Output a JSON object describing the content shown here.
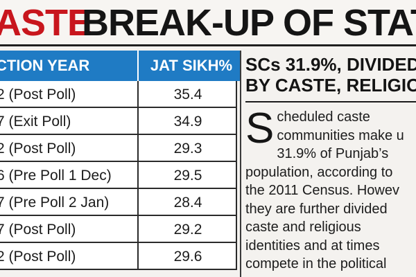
{
  "headline": {
    "red": "ASTE",
    "black": "BREAK-UP OF STATE"
  },
  "table": {
    "headers": {
      "year": "CTION YEAR",
      "jat": "JAT SIKH%"
    },
    "rows": [
      {
        "year": "2 (Post Poll)",
        "jat": "35.4"
      },
      {
        "year": "7 (Exit Poll)",
        "jat": "34.9"
      },
      {
        "year": "2 (Post Poll)",
        "jat": "29.3"
      },
      {
        "year": "6 (Pre Poll 1 Dec)",
        "jat": "29.5"
      },
      {
        "year": "7 (Pre Poll 2 Jan)",
        "jat": "28.4"
      },
      {
        "year": "7 (Post Poll)",
        "jat": "29.2"
      },
      {
        "year": "2 (Post Poll)",
        "jat": "29.6"
      }
    ]
  },
  "sidebar": {
    "heading_line1": "SCs 31.9%, DIVIDED",
    "heading_line2": "BY CASTE, RELIGIO",
    "drop_cap": "S",
    "line1": "cheduled caste",
    "line2": "communities make u",
    "line3": "31.9% of Punjab’s",
    "line4": "population, according to",
    "line5": "the 2011 Census. Howev",
    "line6": "they are further divided",
    "line7": "caste and religious",
    "line8": "identities and at times",
    "line9": "compete in the political"
  }
}
